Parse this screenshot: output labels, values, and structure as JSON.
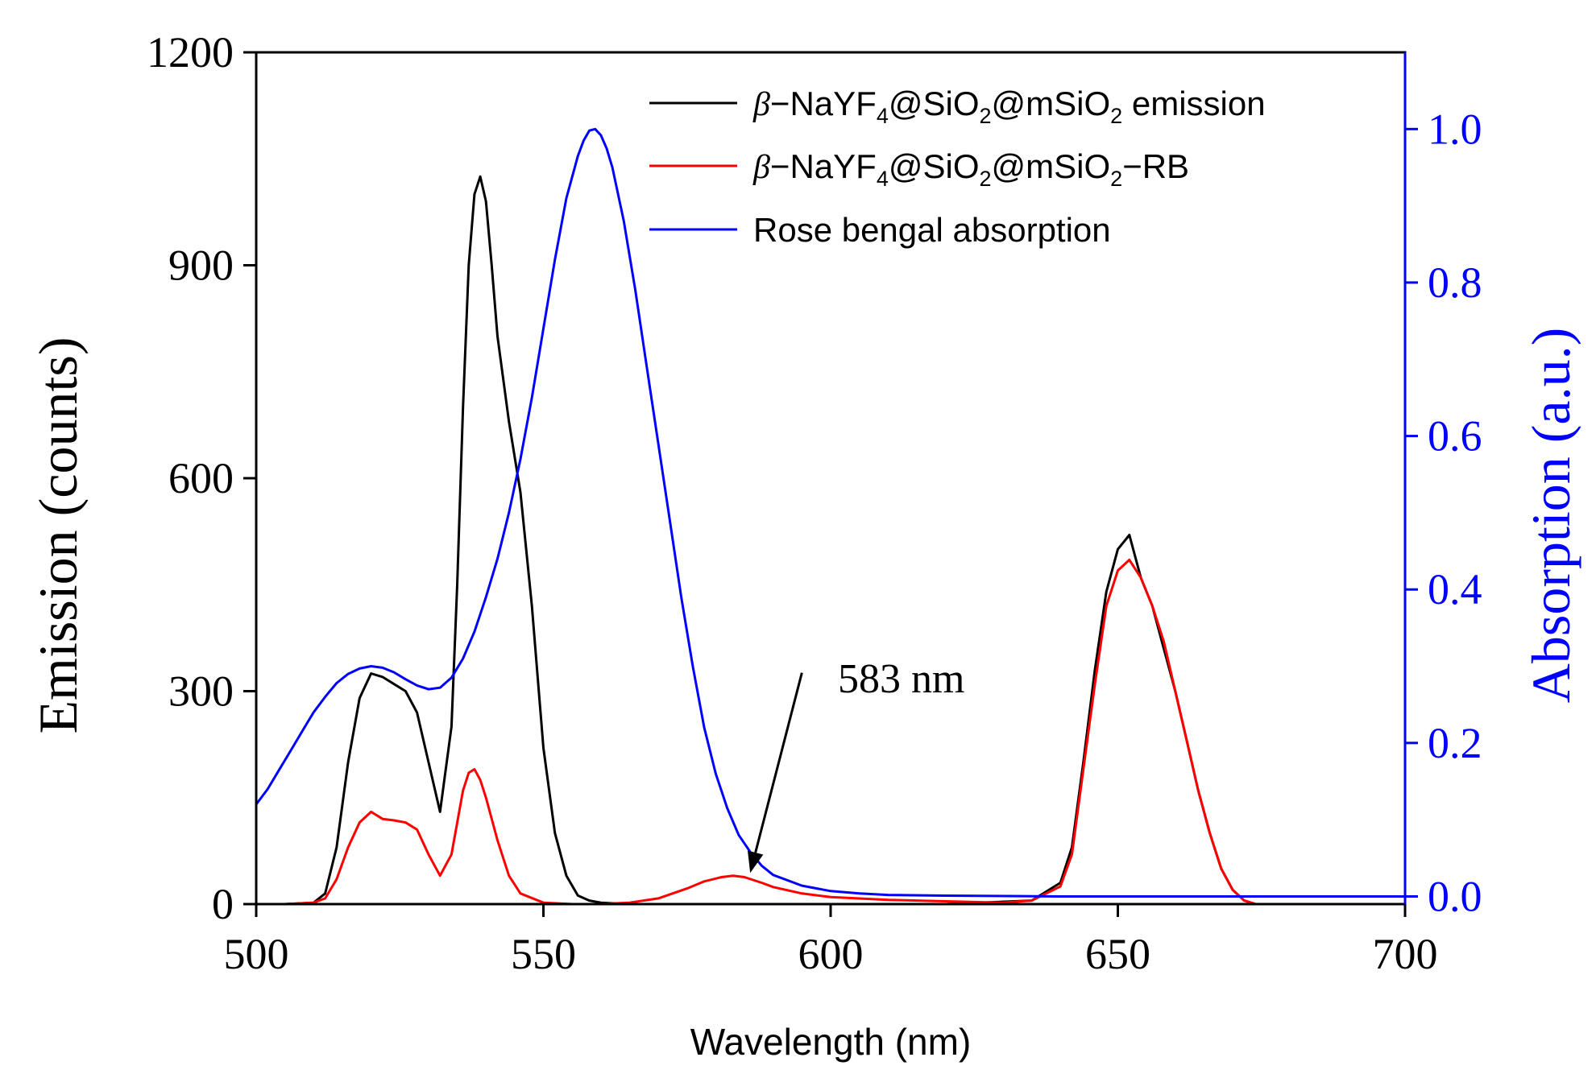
{
  "chart_data": {
    "type": "line",
    "xlabel": "Wavelength (nm)",
    "ylabel_left": "Emission (counts)",
    "ylabel_right": "Absorption (a.u.)",
    "xlim": [
      500,
      700
    ],
    "ylim_left": [
      0,
      1200
    ],
    "ylim_right": [
      -0.01,
      1.1
    ],
    "x_ticks": [
      500,
      550,
      600,
      650,
      700
    ],
    "x_tick_labels": [
      "500",
      "550",
      "600",
      "650",
      "700"
    ],
    "y_left_ticks": [
      0,
      300,
      600,
      900,
      1200
    ],
    "y_left_tick_labels": [
      "0",
      "300",
      "600",
      "900",
      "1200"
    ],
    "y_right_ticks": [
      0.0,
      0.2,
      0.4,
      0.6,
      0.8,
      1.0
    ],
    "y_right_tick_labels": [
      "0.0",
      "0.2",
      "0.4",
      "0.6",
      "0.8",
      "1.0"
    ],
    "colors": {
      "emission": "#000000",
      "rb": "#ff0000",
      "absorption": "#0000ff",
      "right_axis": "#0000ff"
    },
    "legend_position": "top-right",
    "series": [
      {
        "id": "emission",
        "name_parts": [
          "β−NaYF",
          "4",
          "@SiO",
          "2",
          "@mSiO",
          "2",
          " emission"
        ],
        "axis": "left",
        "x": [
          500,
          505,
          510,
          512,
          514,
          516,
          518,
          520,
          522,
          524,
          526,
          528,
          530,
          532,
          534,
          535,
          536,
          537,
          538,
          539,
          540,
          541,
          542,
          544,
          546,
          548,
          550,
          552,
          554,
          556,
          558,
          560,
          565,
          570,
          580,
          600,
          620,
          635,
          640,
          642,
          644,
          646,
          648,
          650,
          652,
          654,
          656,
          658,
          660,
          662,
          664,
          666,
          668,
          670,
          672,
          674,
          680,
          690,
          700
        ],
        "y": [
          0,
          0,
          2,
          15,
          80,
          200,
          290,
          325,
          320,
          310,
          300,
          270,
          200,
          130,
          250,
          450,
          700,
          900,
          1000,
          1025,
          990,
          900,
          800,
          680,
          580,
          420,
          220,
          100,
          40,
          12,
          5,
          2,
          0,
          0,
          0,
          0,
          0,
          5,
          30,
          80,
          200,
          330,
          440,
          500,
          520,
          460,
          420,
          360,
          300,
          230,
          160,
          100,
          50,
          20,
          5,
          0,
          0,
          0,
          0
        ]
      },
      {
        "id": "rb",
        "name_parts": [
          "β−NaYF",
          "4",
          "@SiO",
          "2",
          "@mSiO",
          "2",
          "−RB"
        ],
        "axis": "left",
        "x": [
          500,
          505,
          510,
          512,
          514,
          516,
          518,
          520,
          522,
          524,
          526,
          528,
          530,
          532,
          534,
          536,
          537,
          538,
          539,
          540,
          542,
          544,
          546,
          550,
          555,
          560,
          565,
          570,
          575,
          578,
          581,
          583,
          585,
          588,
          590,
          595,
          600,
          610,
          620,
          630,
          635,
          640,
          642,
          644,
          646,
          648,
          650,
          652,
          654,
          656,
          658,
          660,
          662,
          664,
          666,
          668,
          670,
          672,
          674,
          680,
          690,
          700
        ],
        "y": [
          0,
          0,
          2,
          8,
          35,
          80,
          115,
          130,
          120,
          118,
          115,
          105,
          70,
          40,
          70,
          160,
          185,
          190,
          175,
          150,
          90,
          40,
          15,
          2,
          0,
          0,
          2,
          8,
          22,
          32,
          38,
          40,
          38,
          30,
          24,
          15,
          10,
          6,
          4,
          2,
          5,
          25,
          70,
          190,
          310,
          420,
          470,
          485,
          460,
          420,
          370,
          300,
          230,
          160,
          100,
          50,
          20,
          5,
          0,
          0,
          0,
          0
        ]
      },
      {
        "id": "absorption",
        "name_parts": [
          "Rose bengal absorption"
        ],
        "axis": "right",
        "x": [
          500,
          502,
          504,
          506,
          508,
          510,
          512,
          514,
          516,
          518,
          520,
          522,
          524,
          526,
          528,
          530,
          532,
          534,
          536,
          538,
          540,
          542,
          544,
          546,
          548,
          550,
          552,
          554,
          556,
          557,
          558,
          559,
          560,
          561,
          562,
          564,
          566,
          568,
          570,
          572,
          574,
          576,
          578,
          580,
          582,
          584,
          586,
          588,
          590,
          595,
          600,
          605,
          610,
          620,
          640,
          660,
          680,
          700
        ],
        "y": [
          0.12,
          0.14,
          0.165,
          0.19,
          0.215,
          0.24,
          0.26,
          0.278,
          0.29,
          0.297,
          0.3,
          0.298,
          0.292,
          0.283,
          0.275,
          0.27,
          0.272,
          0.285,
          0.31,
          0.345,
          0.39,
          0.44,
          0.5,
          0.57,
          0.65,
          0.74,
          0.83,
          0.91,
          0.965,
          0.985,
          0.998,
          1.0,
          0.992,
          0.975,
          0.95,
          0.88,
          0.79,
          0.69,
          0.59,
          0.49,
          0.39,
          0.3,
          0.22,
          0.16,
          0.115,
          0.08,
          0.058,
          0.04,
          0.028,
          0.014,
          0.007,
          0.004,
          0.002,
          0.001,
          0.0,
          0.0,
          0.0,
          0.0
        ]
      }
    ],
    "annotation": {
      "text": "583 nm",
      "arrow_from": [
        595,
        326
      ],
      "arrow_to": [
        586,
        44
      ]
    }
  }
}
